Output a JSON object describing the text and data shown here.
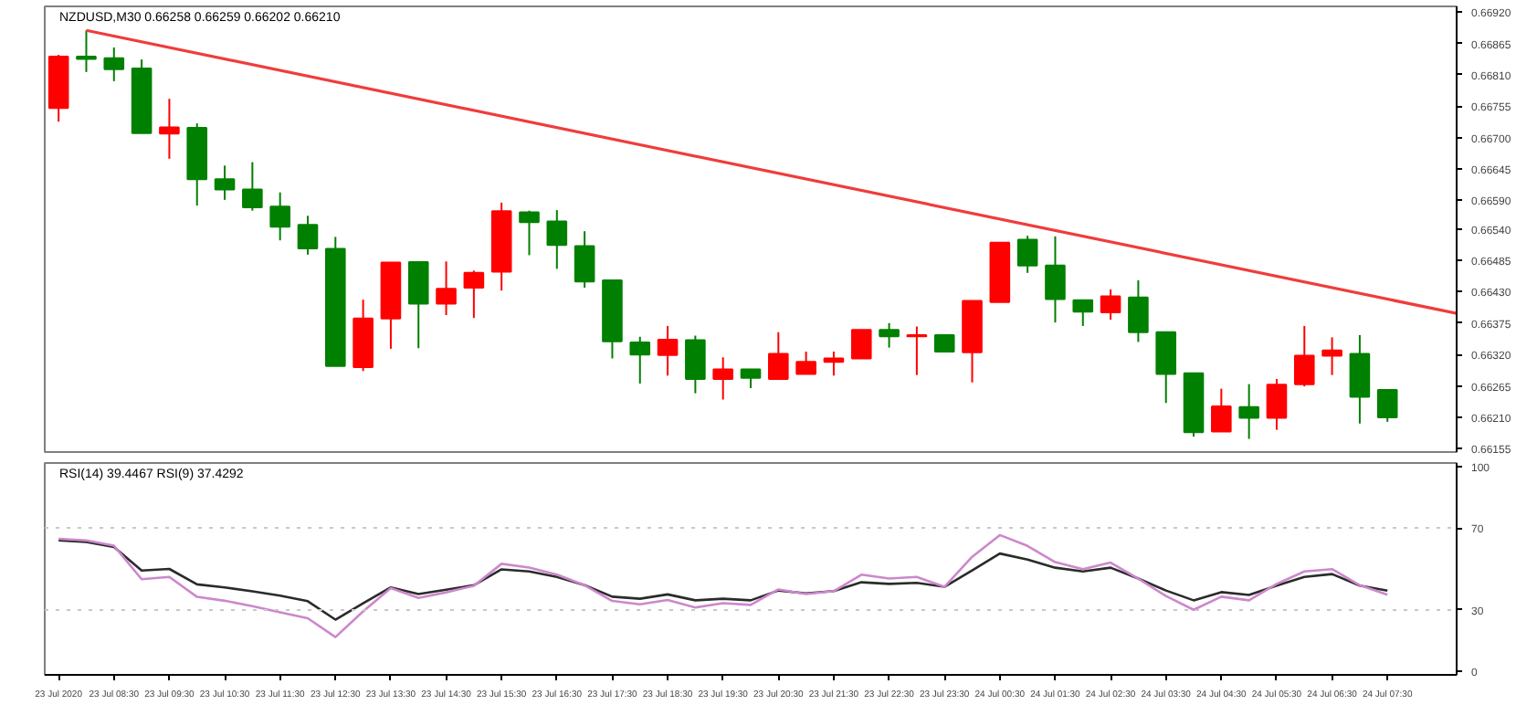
{
  "chart_data": [
    {
      "type": "candlestick",
      "title": "NZDUSD,M30 0.66258 0.66259 0.66202 0.66210",
      "x": [
        "2020-07-23T07:30",
        "2020-07-23T08:00",
        "2020-07-23T08:30",
        "2020-07-23T09:00",
        "2020-07-23T09:30",
        "2020-07-23T10:00",
        "2020-07-23T10:30",
        "2020-07-23T11:00",
        "2020-07-23T11:30",
        "2020-07-23T12:00",
        "2020-07-23T12:30",
        "2020-07-23T13:00",
        "2020-07-23T13:30",
        "2020-07-23T14:00",
        "2020-07-23T14:30",
        "2020-07-23T15:00",
        "2020-07-23T15:30",
        "2020-07-23T16:00",
        "2020-07-23T16:30",
        "2020-07-23T17:00",
        "2020-07-23T17:30",
        "2020-07-23T18:00",
        "2020-07-23T18:30",
        "2020-07-23T19:00",
        "2020-07-23T19:30",
        "2020-07-23T20:00",
        "2020-07-23T20:30",
        "2020-07-23T21:00",
        "2020-07-23T21:30",
        "2020-07-23T22:00",
        "2020-07-23T22:30",
        "2020-07-23T23:00",
        "2020-07-23T23:30",
        "2020-07-24T00:00",
        "2020-07-24T00:30",
        "2020-07-24T01:00",
        "2020-07-24T01:30",
        "2020-07-24T02:00",
        "2020-07-24T02:30",
        "2020-07-24T03:00",
        "2020-07-24T03:30",
        "2020-07-24T04:00",
        "2020-07-24T04:30",
        "2020-07-24T05:00",
        "2020-07-24T05:30",
        "2020-07-24T06:00",
        "2020-07-24T06:30",
        "2020-07-24T07:00",
        "2020-07-24T07:30"
      ],
      "ohlc": [
        [
          0.66752,
          0.66845,
          0.66728,
          0.66842
        ],
        [
          0.66842,
          0.66888,
          0.66815,
          0.66838
        ],
        [
          0.66839,
          0.66858,
          0.66799,
          0.6682
        ],
        [
          0.66821,
          0.66837,
          0.66708,
          0.66708
        ],
        [
          0.66707,
          0.66768,
          0.66663,
          0.66718
        ],
        [
          0.66717,
          0.66725,
          0.66581,
          0.66627
        ],
        [
          0.66627,
          0.66651,
          0.66591,
          0.66609
        ],
        [
          0.66609,
          0.66657,
          0.66572,
          0.66578
        ],
        [
          0.66579,
          0.66604,
          0.6652,
          0.66544
        ],
        [
          0.66547,
          0.66563,
          0.66495,
          0.66506
        ],
        [
          0.66505,
          0.66526,
          0.663,
          0.663
        ],
        [
          0.66298,
          0.66416,
          0.66291,
          0.66383
        ],
        [
          0.66383,
          0.66481,
          0.6633,
          0.66481
        ],
        [
          0.66482,
          0.66482,
          0.66331,
          0.66409
        ],
        [
          0.66409,
          0.66483,
          0.66389,
          0.66435
        ],
        [
          0.66437,
          0.66467,
          0.66384,
          0.66463
        ],
        [
          0.66465,
          0.66586,
          0.66432,
          0.66571
        ],
        [
          0.66569,
          0.66572,
          0.66494,
          0.66552
        ],
        [
          0.66553,
          0.66573,
          0.6647,
          0.66512
        ],
        [
          0.6651,
          0.66536,
          0.66437,
          0.66448
        ],
        [
          0.6645,
          0.6645,
          0.66313,
          0.66343
        ],
        [
          0.66341,
          0.66351,
          0.66269,
          0.6632
        ],
        [
          0.66319,
          0.6637,
          0.66283,
          0.66346
        ],
        [
          0.66345,
          0.66353,
          0.66252,
          0.66277
        ],
        [
          0.66277,
          0.66315,
          0.66241,
          0.66294
        ],
        [
          0.66294,
          0.66294,
          0.66261,
          0.66279
        ],
        [
          0.66277,
          0.66359,
          0.66277,
          0.66321
        ],
        [
          0.66286,
          0.66325,
          0.66286,
          0.66307
        ],
        [
          0.66307,
          0.66325,
          0.66283,
          0.66313
        ],
        [
          0.66313,
          0.66363,
          0.66313,
          0.66363
        ],
        [
          0.66363,
          0.66375,
          0.66332,
          0.66352
        ],
        [
          0.66352,
          0.66369,
          0.66284,
          0.66354
        ],
        [
          0.66354,
          0.66354,
          0.66325,
          0.66325
        ],
        [
          0.66324,
          0.66414,
          0.66271,
          0.66414
        ],
        [
          0.66412,
          0.66516,
          0.66412,
          0.66516
        ],
        [
          0.66521,
          0.66528,
          0.66463,
          0.66476
        ],
        [
          0.66476,
          0.66527,
          0.66376,
          0.66417
        ],
        [
          0.66415,
          0.66415,
          0.6637,
          0.66395
        ],
        [
          0.66394,
          0.66434,
          0.66381,
          0.66422
        ],
        [
          0.6642,
          0.6645,
          0.66342,
          0.66359
        ],
        [
          0.66359,
          0.66359,
          0.66235,
          0.66286
        ],
        [
          0.66287,
          0.66287,
          0.66176,
          0.66184
        ],
        [
          0.66185,
          0.6626,
          0.66185,
          0.66229
        ],
        [
          0.66228,
          0.66268,
          0.66172,
          0.66209
        ],
        [
          0.66209,
          0.66277,
          0.66188,
          0.66267
        ],
        [
          0.66268,
          0.6637,
          0.66264,
          0.66318
        ],
        [
          0.66318,
          0.6635,
          0.66284,
          0.66327
        ],
        [
          0.66321,
          0.66354,
          0.66199,
          0.66246
        ],
        [
          0.66258,
          0.66259,
          0.66202,
          0.6621
        ]
      ],
      "colors": [
        "#ff0000",
        "#008000",
        "#008000",
        "#008000",
        "#ff0000",
        "#008000",
        "#008000",
        "#008000",
        "#008000",
        "#008000",
        "#008000",
        "#ff0000",
        "#ff0000",
        "#008000",
        "#ff0000",
        "#ff0000",
        "#ff0000",
        "#008000",
        "#008000",
        "#008000",
        "#008000",
        "#008000",
        "#ff0000",
        "#008000",
        "#ff0000",
        "#008000",
        "#ff0000",
        "#ff0000",
        "#ff0000",
        "#ff0000",
        "#008000",
        "#ff0000",
        "#008000",
        "#ff0000",
        "#ff0000",
        "#008000",
        "#008000",
        "#008000",
        "#ff0000",
        "#008000",
        "#008000",
        "#008000",
        "#ff0000",
        "#008000",
        "#ff0000",
        "#ff0000",
        "#ff0000",
        "#008000",
        "#008000"
      ],
      "series": [
        {
          "type": "line",
          "x": [
            "2020-07-23T08:00",
            "2020-07-24T08:45"
          ],
          "values": [
            0.66888,
            0.66392
          ],
          "color": "#f03c3c"
        }
      ],
      "xlim": [
        "2020-07-23T07:15",
        "2020-07-24T08:45"
      ],
      "ylim": [
        0.66149,
        0.6693
      ],
      "yticks": [
        {
          "value": 0.6692,
          "label": "0.66920"
        },
        {
          "value": 0.66865,
          "label": "0.66865"
        },
        {
          "value": 0.6681,
          "label": "0.66810"
        },
        {
          "value": 0.66755,
          "label": "0.66755"
        },
        {
          "value": 0.667,
          "label": "0.66700"
        },
        {
          "value": 0.66645,
          "label": "0.66645"
        },
        {
          "value": 0.6659,
          "label": "0.66590"
        },
        {
          "value": 0.6654,
          "label": "0.66540"
        },
        {
          "value": 0.66485,
          "label": "0.66485"
        },
        {
          "value": 0.6643,
          "label": "0.66430"
        },
        {
          "value": 0.66375,
          "label": "0.66375"
        },
        {
          "value": 0.6632,
          "label": "0.66320"
        },
        {
          "value": 0.66265,
          "label": "0.66265"
        },
        {
          "value": 0.6621,
          "label": "0.66210"
        },
        {
          "value": 0.66155,
          "label": "0.66155"
        }
      ],
      "tick_labels": "y",
      "grid": false
    },
    {
      "type": "line",
      "title": "RSI(14) 39.4467 RSI(9) 37.4292",
      "x": [
        "2020-07-23T07:30",
        "2020-07-23T08:00",
        "2020-07-23T08:30",
        "2020-07-23T09:00",
        "2020-07-23T09:30",
        "2020-07-23T10:00",
        "2020-07-23T10:30",
        "2020-07-23T11:00",
        "2020-07-23T11:30",
        "2020-07-23T12:00",
        "2020-07-23T12:30",
        "2020-07-23T13:00",
        "2020-07-23T13:30",
        "2020-07-23T14:00",
        "2020-07-23T14:30",
        "2020-07-23T15:00",
        "2020-07-23T15:30",
        "2020-07-23T16:00",
        "2020-07-23T16:30",
        "2020-07-23T17:00",
        "2020-07-23T17:30",
        "2020-07-23T18:00",
        "2020-07-23T18:30",
        "2020-07-23T19:00",
        "2020-07-23T19:30",
        "2020-07-23T20:00",
        "2020-07-23T20:30",
        "2020-07-23T21:00",
        "2020-07-23T21:30",
        "2020-07-23T22:00",
        "2020-07-23T22:30",
        "2020-07-23T23:00",
        "2020-07-23T23:30",
        "2020-07-24T00:00",
        "2020-07-24T00:30",
        "2020-07-24T01:00",
        "2020-07-24T01:30",
        "2020-07-24T02:00",
        "2020-07-24T02:30",
        "2020-07-24T03:00",
        "2020-07-24T03:30",
        "2020-07-24T04:00",
        "2020-07-24T04:30",
        "2020-07-24T05:00",
        "2020-07-24T05:30",
        "2020-07-24T06:00",
        "2020-07-24T06:30",
        "2020-07-24T07:00",
        "2020-07-24T07:30"
      ],
      "series": [
        {
          "color": "#2b2b2b",
          "values": [
            63.9,
            63.1,
            60.7,
            49.2,
            50.0,
            42.5,
            41.0,
            39.1,
            37.0,
            34.3,
            25.3,
            33.3,
            41.0,
            37.8,
            39.9,
            42.1,
            49.8,
            48.8,
            46.1,
            42.1,
            36.5,
            35.5,
            37.6,
            34.7,
            35.5,
            34.7,
            39.5,
            38.1,
            39.2,
            43.5,
            42.7,
            43.2,
            41.3,
            49.3,
            57.5,
            54.6,
            50.6,
            48.8,
            50.6,
            45.3,
            39.5,
            34.7,
            38.7,
            37.3,
            41.9,
            46.1,
            47.5,
            41.9,
            39.4
          ]
        },
        {
          "color": "#cc88cc",
          "values": [
            64.7,
            63.9,
            61.3,
            45.0,
            46.1,
            36.4,
            34.5,
            31.9,
            28.9,
            26.0,
            16.8,
            29.3,
            40.7,
            35.9,
            38.6,
            41.8,
            52.5,
            50.7,
            47.2,
            42.1,
            34.4,
            32.8,
            34.9,
            31.2,
            33.3,
            32.5,
            40.0,
            37.8,
            39.2,
            47.2,
            45.3,
            46.1,
            41.3,
            55.9,
            66.5,
            61.2,
            53.3,
            49.9,
            53.1,
            45.3,
            36.8,
            30.1,
            36.5,
            34.7,
            42.7,
            48.8,
            49.9,
            42.1,
            37.4
          ]
        }
      ],
      "xlim": [
        "2020-07-23T07:15",
        "2020-07-24T08:45"
      ],
      "ylim": [
        -1.6,
        101.6
      ],
      "yticks": [
        100,
        70,
        30,
        0
      ],
      "xticks": [
        {
          "value": "2020-07-23T07:30",
          "label": "23 Jul 2020"
        },
        {
          "value": "2020-07-23T08:30",
          "label": "23 Jul 08:30"
        },
        {
          "value": "2020-07-23T09:30",
          "label": "23 Jul 09:30"
        },
        {
          "value": "2020-07-23T10:30",
          "label": "23 Jul 10:30"
        },
        {
          "value": "2020-07-23T11:30",
          "label": "23 Jul 11:30"
        },
        {
          "value": "2020-07-23T12:30",
          "label": "23 Jul 12:30"
        },
        {
          "value": "2020-07-23T13:30",
          "label": "23 Jul 13:30"
        },
        {
          "value": "2020-07-23T14:30",
          "label": "23 Jul 14:30"
        },
        {
          "value": "2020-07-23T15:30",
          "label": "23 Jul 15:30"
        },
        {
          "value": "2020-07-23T16:30",
          "label": "23 Jul 16:30"
        },
        {
          "value": "2020-07-23T17:30",
          "label": "23 Jul 17:30"
        },
        {
          "value": "2020-07-23T18:30",
          "label": "23 Jul 18:30"
        },
        {
          "value": "2020-07-23T19:30",
          "label": "23 Jul 19:30"
        },
        {
          "value": "2020-07-23T20:30",
          "label": "23 Jul 20:30"
        },
        {
          "value": "2020-07-23T21:30",
          "label": "23 Jul 21:30"
        },
        {
          "value": "2020-07-23T22:30",
          "label": "23 Jul 22:30"
        },
        {
          "value": "2020-07-23T23:30",
          "label": "23 Jul 23:30"
        },
        {
          "value": "2020-07-24T00:30",
          "label": "24 Jul 00:30"
        },
        {
          "value": "2020-07-24T01:30",
          "label": "24 Jul 01:30"
        },
        {
          "value": "2020-07-24T02:30",
          "label": "24 Jul 02:30"
        },
        {
          "value": "2020-07-24T03:30",
          "label": "24 Jul 03:30"
        },
        {
          "value": "2020-07-24T04:30",
          "label": "24 Jul 04:30"
        },
        {
          "value": "2020-07-24T05:30",
          "label": "24 Jul 05:30"
        },
        {
          "value": "2020-07-24T06:30",
          "label": "24 Jul 06:30"
        },
        {
          "value": "2020-07-24T07:30",
          "label": "24 Jul 07:30"
        }
      ],
      "ref_lines": [
        {
          "axis": "y",
          "value": 70,
          "color": "#c8c8c8",
          "line_style": "dotted"
        },
        {
          "axis": "y",
          "value": 30,
          "color": "#c8c8c8",
          "line_style": "dotted"
        }
      ],
      "grid": false
    }
  ]
}
